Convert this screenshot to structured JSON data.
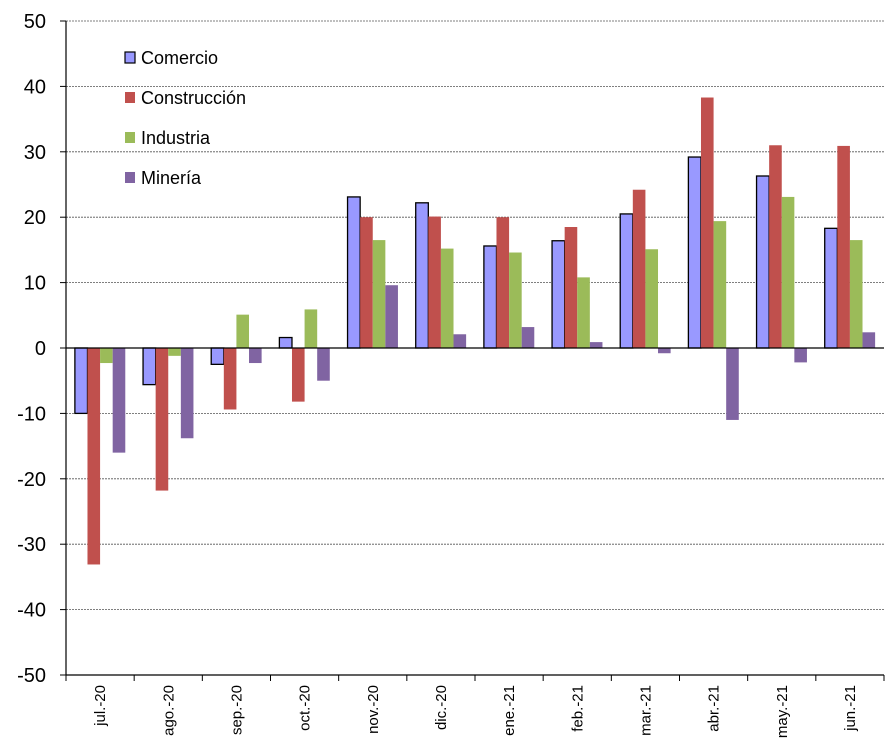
{
  "chart_data": {
    "type": "bar",
    "title": "",
    "xlabel": "",
    "ylabel": "",
    "ylim": [
      -50,
      50
    ],
    "yticks": [
      50,
      40,
      30,
      20,
      10,
      0,
      -10,
      -20,
      -30,
      -40,
      -50
    ],
    "grid": true,
    "legend_position": "top-left",
    "categories": [
      "jul.-20",
      "ago.-20",
      "sep.-20",
      "oct.-20",
      "nov.-20",
      "dic.-20",
      "ene.-21",
      "feb.-21",
      "mar.-21",
      "abr.-21",
      "may.-21",
      "jun.-21"
    ],
    "series": [
      {
        "name": "Comercio",
        "color": "#9999ff",
        "outline": true,
        "values": [
          -10.0,
          -5.6,
          -2.5,
          1.6,
          23.1,
          22.2,
          15.6,
          16.4,
          20.5,
          29.2,
          26.3,
          18.3
        ]
      },
      {
        "name": "Construcción",
        "color": "#c0504d",
        "outline": false,
        "values": [
          -33.1,
          -21.8,
          -9.4,
          -8.2,
          20.0,
          20.1,
          20.0,
          18.5,
          24.2,
          38.3,
          31.0,
          30.9
        ]
      },
      {
        "name": "Industria",
        "color": "#9bbb59",
        "outline": false,
        "values": [
          -2.3,
          -1.2,
          5.1,
          5.9,
          16.5,
          15.2,
          14.6,
          10.8,
          15.1,
          19.4,
          23.1,
          16.5
        ]
      },
      {
        "name": "Minería",
        "color": "#8064a2",
        "outline": false,
        "values": [
          -16.0,
          -13.8,
          -2.3,
          -5.0,
          9.6,
          2.1,
          3.2,
          0.9,
          -0.8,
          -11.0,
          -2.2,
          2.4
        ]
      }
    ]
  }
}
